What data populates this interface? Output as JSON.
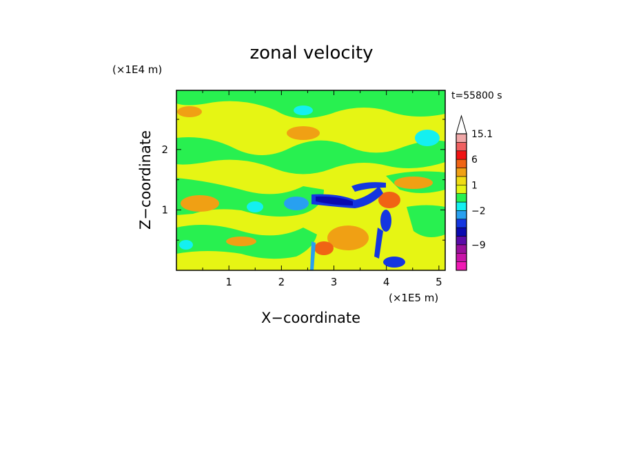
{
  "chart_data": {
    "type": "heatmap",
    "title": "zonal velocity",
    "xlabel": "X−coordinate",
    "ylabel": "Z−coordinate",
    "x_unit": "(×1E5 m)",
    "y_unit": "(×1E4 m)",
    "time_label": "t=55800 s",
    "xlim": [
      0,
      5.12
    ],
    "ylim": [
      0,
      2.98
    ],
    "x_ticks": [
      "1",
      "2",
      "3",
      "4",
      "5"
    ],
    "y_ticks": [
      "1",
      "2"
    ],
    "colorbar": {
      "levels": [
        {
          "value": -15.1,
          "color": "#f019b4"
        },
        {
          "value": -12,
          "color": "#c814a8"
        },
        {
          "value": -9,
          "color": "#9a109c"
        },
        {
          "value": -6,
          "color": "#5a0ca8"
        },
        {
          "value": -4,
          "color": "#0a0ab0"
        },
        {
          "value": -3,
          "color": "#1436e0"
        },
        {
          "value": -2,
          "color": "#28a0f0"
        },
        {
          "value": -1,
          "color": "#14f0f0"
        },
        {
          "value": 0,
          "color": "#28f050"
        },
        {
          "value": 1,
          "color": "#e6f514"
        },
        {
          "value": 2,
          "color": "#f0dc14"
        },
        {
          "value": 3,
          "color": "#f0a014"
        },
        {
          "value": 6,
          "color": "#f06414"
        },
        {
          "value": 9,
          "color": "#f01414"
        },
        {
          "value": 12,
          "color": "#f06060"
        },
        {
          "value": 15.1,
          "color": "#f0a8a8"
        }
      ],
      "labels": [
        "15.1",
        "6",
        "1",
        "−2",
        "−9"
      ]
    }
  }
}
